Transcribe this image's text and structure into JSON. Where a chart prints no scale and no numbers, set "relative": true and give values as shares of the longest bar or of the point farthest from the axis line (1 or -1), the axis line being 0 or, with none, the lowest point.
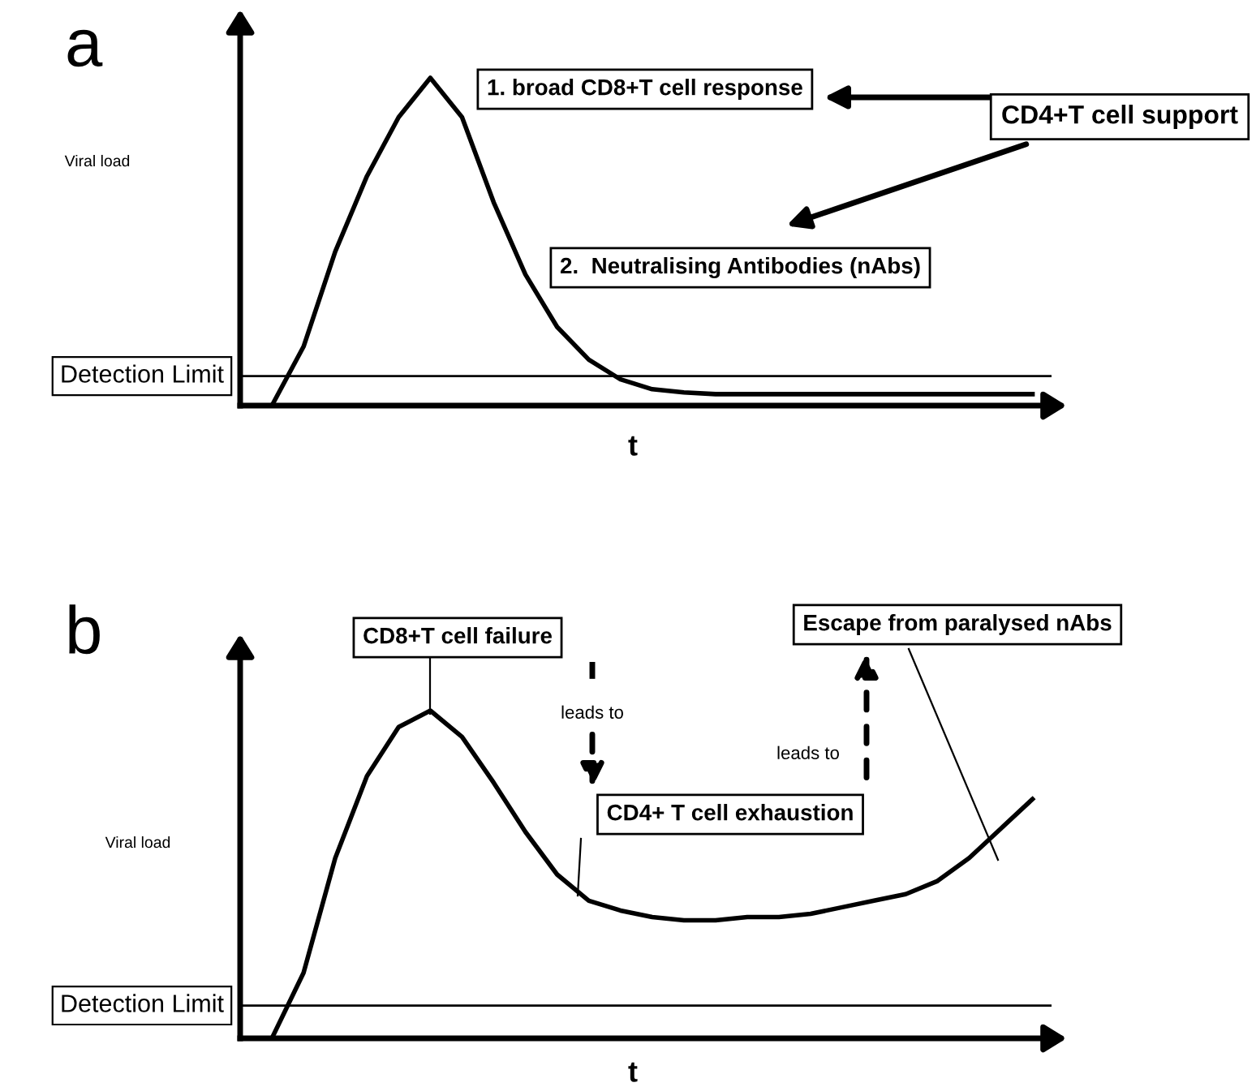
{
  "chart_data": [
    {
      "type": "line",
      "title": "a",
      "xlabel": "t",
      "ylabel": "Viral load",
      "relative": true,
      "color": "#000000",
      "categories": [
        null,
        null,
        null,
        null,
        null,
        null,
        null,
        null,
        null,
        null,
        null,
        null,
        null,
        null,
        null,
        null,
        null,
        null,
        null,
        null,
        null,
        null,
        null,
        null,
        null,
        null
      ],
      "values": [
        null,
        0.0,
        0.18,
        0.47,
        0.7,
        0.88,
        1.0,
        0.88,
        0.62,
        0.4,
        0.24,
        0.14,
        0.08,
        0.05,
        0.04,
        0.035,
        0.035,
        0.035,
        0.035,
        0.035,
        0.035,
        0.035,
        0.035,
        0.035,
        0.035,
        0.035
      ],
      "ref_lines": [
        {
          "axis": "y",
          "value": 0.09,
          "label": "Detection Limit"
        }
      ],
      "annotations": [
        "1. broad CD8+T cell response",
        "CD4+T cell support",
        "2.  Neutralising Antibodies (nAbs)"
      ]
    },
    {
      "type": "line",
      "title": "b",
      "xlabel": "t",
      "ylabel": "Viral load",
      "relative": true,
      "color": "#000000",
      "categories": [
        null,
        null,
        null,
        null,
        null,
        null,
        null,
        null,
        null,
        null,
        null,
        null,
        null,
        null,
        null,
        null,
        null,
        null,
        null,
        null,
        null,
        null,
        null,
        null,
        null,
        null
      ],
      "values": [
        null,
        0.0,
        0.2,
        0.55,
        0.8,
        0.95,
        1.0,
        0.92,
        0.78,
        0.63,
        0.5,
        0.42,
        0.39,
        0.37,
        0.36,
        0.36,
        0.37,
        0.37,
        0.38,
        0.4,
        0.42,
        0.44,
        0.48,
        0.55,
        0.64,
        0.73
      ],
      "ref_lines": [
        {
          "axis": "y",
          "value": 0.1,
          "label": "Detection Limit"
        }
      ],
      "annotations": [
        "CD8+T cell failure",
        "leads to",
        "CD4+ T cell exhaustion",
        "leads to",
        "Escape from paralysed nAbs"
      ]
    }
  ]
}
